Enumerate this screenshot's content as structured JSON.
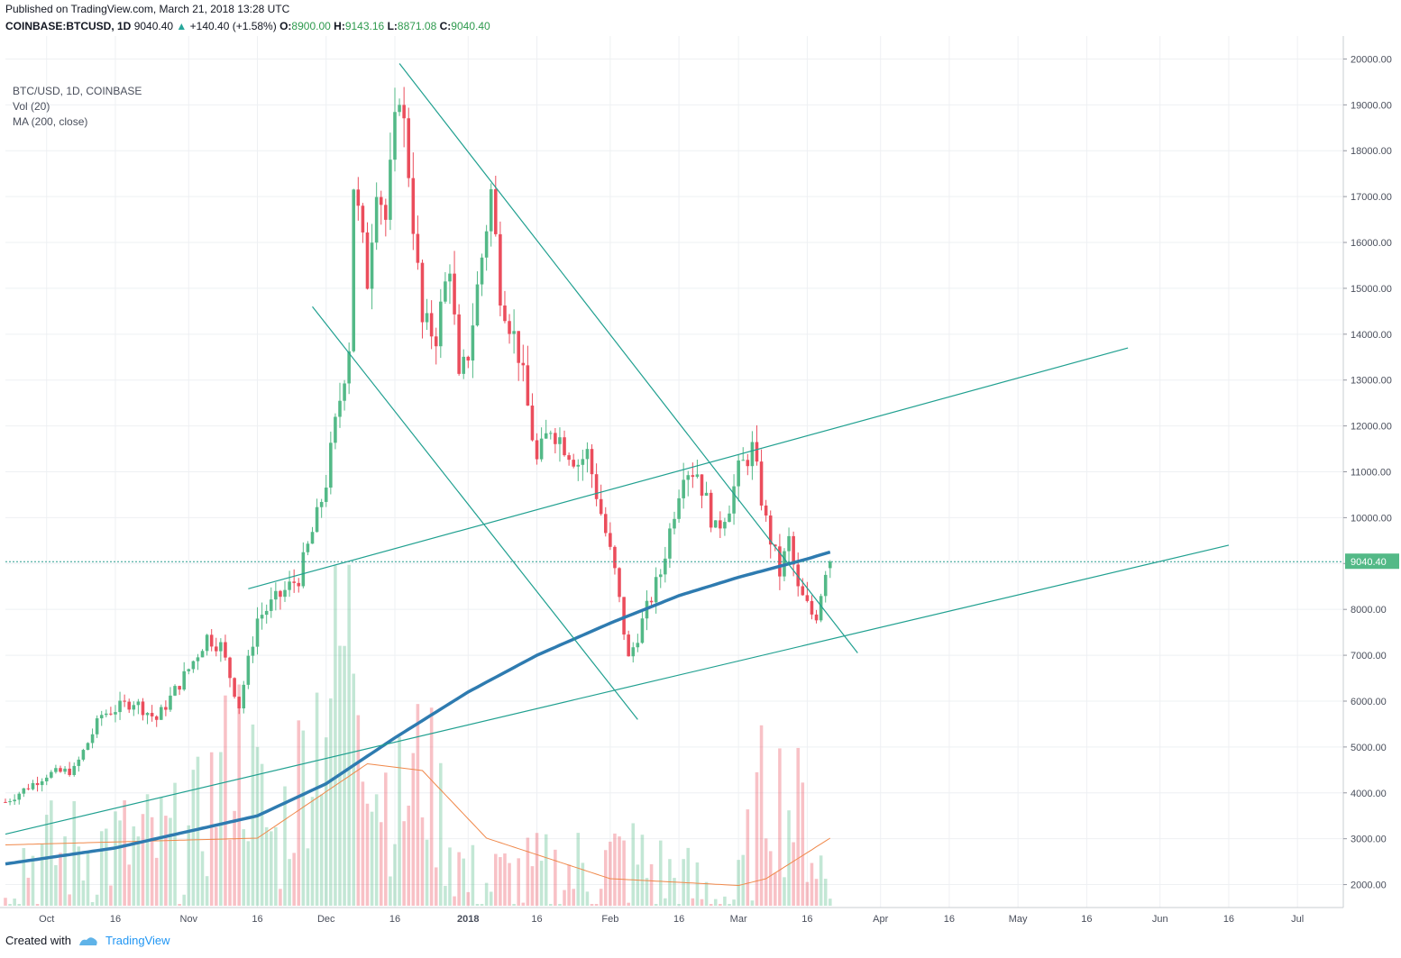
{
  "header": {
    "published": "Published on TradingView.com, March 21, 2018 13:28 UTC",
    "symbol": "COINBASE:BTCUSD, 1D",
    "last": "9040.40",
    "change": "+140.40 (+1.58%)",
    "open_label": "O:",
    "open": "8900.00",
    "high_label": "H:",
    "high": "9143.16",
    "low_label": "L:",
    "low": "8871.08",
    "close_label": "C:",
    "close": "9040.40"
  },
  "legend": {
    "series": "BTC/USD, 1D, COINBASE",
    "vol": "Vol (20)",
    "ma": "MA (200, close)"
  },
  "footer": {
    "created_with": "Created with",
    "brand": "TradingView"
  },
  "colors": {
    "up": "#53b987",
    "down": "#eb4d5c",
    "ma200": "#2e7bb0",
    "trend": "#20a090",
    "vol_ma": "#f0884a",
    "price_line": "#2a9d8f"
  },
  "chart_data": {
    "type": "candlestick",
    "title": "BTC/USD, 1D, COINBASE",
    "yaxis": {
      "range": [
        1500,
        20500
      ],
      "ticks": [
        "2000.00",
        "3000.00",
        "4000.00",
        "5000.00",
        "6000.00",
        "7000.00",
        "8000.00",
        "9000.00",
        "10000.00",
        "11000.00",
        "12000.00",
        "13000.00",
        "14000.00",
        "15000.00",
        "16000.00",
        "17000.00",
        "18000.00",
        "19000.00",
        "20000.00"
      ]
    },
    "xaxis": {
      "range": [
        "2017-09-22",
        "2018-07-11"
      ],
      "ticks": [
        {
          "date": "2017-10-01",
          "label": "Oct"
        },
        {
          "date": "2017-10-16",
          "label": "16"
        },
        {
          "date": "2017-11-01",
          "label": "Nov"
        },
        {
          "date": "2017-11-16",
          "label": "16"
        },
        {
          "date": "2017-12-01",
          "label": "Dec"
        },
        {
          "date": "2017-12-16",
          "label": "16"
        },
        {
          "date": "2018-01-01",
          "label": "2018"
        },
        {
          "date": "2018-01-16",
          "label": "16"
        },
        {
          "date": "2018-02-01",
          "label": "Feb"
        },
        {
          "date": "2018-02-16",
          "label": "16"
        },
        {
          "date": "2018-03-01",
          "label": "Mar"
        },
        {
          "date": "2018-03-16",
          "label": "16"
        },
        {
          "date": "2018-04-01",
          "label": "Apr"
        },
        {
          "date": "2018-04-16",
          "label": "16"
        },
        {
          "date": "2018-05-01",
          "label": "May"
        },
        {
          "date": "2018-05-16",
          "label": "16"
        },
        {
          "date": "2018-06-01",
          "label": "Jun"
        },
        {
          "date": "2018-06-16",
          "label": "16"
        },
        {
          "date": "2018-07-01",
          "label": "Jul"
        }
      ]
    },
    "last_price_label": "9040.40",
    "last_price": 9040.4,
    "ohlc_start": "2017-09-22",
    "close_anchors": [
      [
        "2017-09-22",
        3800
      ],
      [
        "2017-10-01",
        4400
      ],
      [
        "2017-10-07",
        4500
      ],
      [
        "2017-10-13",
        5700
      ],
      [
        "2017-10-20",
        6000
      ],
      [
        "2017-10-25",
        5600
      ],
      [
        "2017-11-01",
        6700
      ],
      [
        "2017-11-05",
        7400
      ],
      [
        "2017-11-08",
        7200
      ],
      [
        "2017-11-12",
        5900
      ],
      [
        "2017-11-16",
        7800
      ],
      [
        "2017-11-20",
        8200
      ],
      [
        "2017-11-25",
        8700
      ],
      [
        "2017-11-29",
        10000
      ],
      [
        "2017-12-01",
        10800
      ],
      [
        "2017-12-06",
        13800
      ],
      [
        "2017-12-07",
        17300
      ],
      [
        "2017-12-10",
        15200
      ],
      [
        "2017-12-12",
        17400
      ],
      [
        "2017-12-14",
        16500
      ],
      [
        "2017-12-17",
        19400
      ],
      [
        "2017-12-19",
        17600
      ],
      [
        "2017-12-22",
        14200
      ],
      [
        "2017-12-25",
        14000
      ],
      [
        "2017-12-28",
        15600
      ],
      [
        "2017-12-30",
        12900
      ],
      [
        "2018-01-01",
        13600
      ],
      [
        "2018-01-06",
        17100
      ],
      [
        "2018-01-08",
        15000
      ],
      [
        "2018-01-12",
        13600
      ],
      [
        "2018-01-16",
        11200
      ],
      [
        "2018-01-19",
        12000
      ],
      [
        "2018-01-25",
        11200
      ],
      [
        "2018-01-27",
        11400
      ],
      [
        "2018-01-30",
        10100
      ],
      [
        "2018-02-02",
        8800
      ],
      [
        "2018-02-05",
        6900
      ],
      [
        "2018-02-09",
        8000
      ],
      [
        "2018-02-12",
        8800
      ],
      [
        "2018-02-17",
        11100
      ],
      [
        "2018-02-20",
        11000
      ],
      [
        "2018-02-24",
        9700
      ],
      [
        "2018-02-27",
        10300
      ],
      [
        "2018-03-01",
        11000
      ],
      [
        "2018-03-04",
        11500
      ],
      [
        "2018-03-07",
        9900
      ],
      [
        "2018-03-10",
        8800
      ],
      [
        "2018-03-12",
        9500
      ],
      [
        "2018-03-14",
        8400
      ],
      [
        "2018-03-17",
        7900
      ],
      [
        "2018-03-18",
        7900
      ],
      [
        "2018-03-20",
        8900
      ],
      [
        "2018-03-21",
        9040.4
      ]
    ],
    "volume_anchors": [
      [
        "2017-09-22",
        2400
      ],
      [
        "2017-10-10",
        2600
      ],
      [
        "2017-11-01",
        2700
      ],
      [
        "2017-11-12",
        4300
      ],
      [
        "2017-11-20",
        2600
      ],
      [
        "2017-12-01",
        5200
      ],
      [
        "2017-12-07",
        6200
      ],
      [
        "2017-12-12",
        3800
      ],
      [
        "2017-12-17",
        3300
      ],
      [
        "2017-12-22",
        4000
      ],
      [
        "2018-01-01",
        2000
      ],
      [
        "2018-01-16",
        2100
      ],
      [
        "2018-02-05",
        2400
      ],
      [
        "2018-02-20",
        1900
      ],
      [
        "2018-03-01",
        1800
      ],
      [
        "2018-03-07",
        3700
      ],
      [
        "2018-03-16",
        3000
      ],
      [
        "2018-03-21",
        1800
      ]
    ],
    "ma200_anchors": [
      [
        "2017-09-22",
        2450
      ],
      [
        "2017-10-16",
        2800
      ],
      [
        "2017-11-16",
        3500
      ],
      [
        "2017-12-01",
        4200
      ],
      [
        "2017-12-16",
        5200
      ],
      [
        "2018-01-01",
        6200
      ],
      [
        "2018-01-16",
        7000
      ],
      [
        "2018-02-01",
        7700
      ],
      [
        "2018-02-16",
        8300
      ],
      [
        "2018-03-01",
        8700
      ],
      [
        "2018-03-16",
        9100
      ],
      [
        "2018-03-21",
        9250
      ]
    ],
    "volume_ma_anchors": [
      [
        "2017-09-22",
        2400
      ],
      [
        "2017-11-16",
        2500
      ],
      [
        "2017-12-10",
        3600
      ],
      [
        "2017-12-22",
        3500
      ],
      [
        "2018-01-05",
        2500
      ],
      [
        "2018-02-01",
        1900
      ],
      [
        "2018-03-01",
        1800
      ],
      [
        "2018-03-07",
        1900
      ],
      [
        "2018-03-21",
        2500
      ]
    ],
    "trendlines": [
      {
        "name": "descending-resistance",
        "from": [
          "2017-12-17",
          19900
        ],
        "to": [
          "2018-03-27",
          7050
        ]
      },
      {
        "name": "channel-upper",
        "from": [
          "2017-11-14",
          8450
        ],
        "to": [
          "2018-05-25",
          13700
        ]
      },
      {
        "name": "channel-lower",
        "from": [
          "2017-09-22",
          3100
        ],
        "to": [
          "2018-06-16",
          9400
        ]
      },
      {
        "name": "descending-support",
        "from": [
          "2017-11-28",
          14600
        ],
        "to": [
          "2018-02-07",
          5600
        ]
      }
    ]
  }
}
